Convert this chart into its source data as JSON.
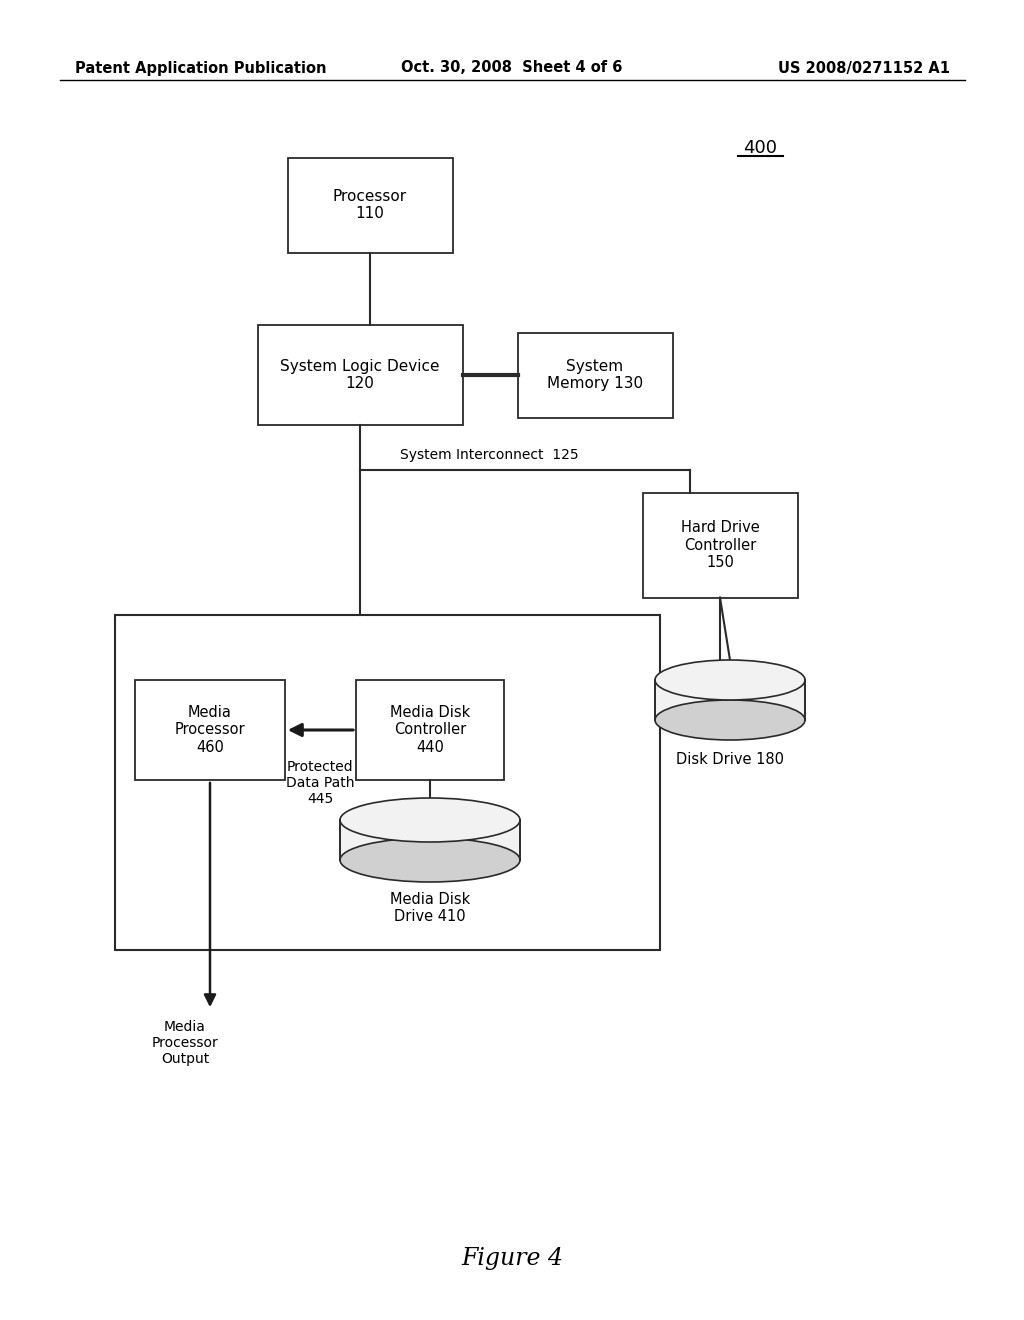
{
  "bg_color": "#ffffff",
  "header_left": "Patent Application Publication",
  "header_mid": "Oct. 30, 2008  Sheet 4 of 6",
  "header_right": "US 2008/0271152 A1",
  "figure_label": "Figure 4",
  "diagram_number": "400"
}
